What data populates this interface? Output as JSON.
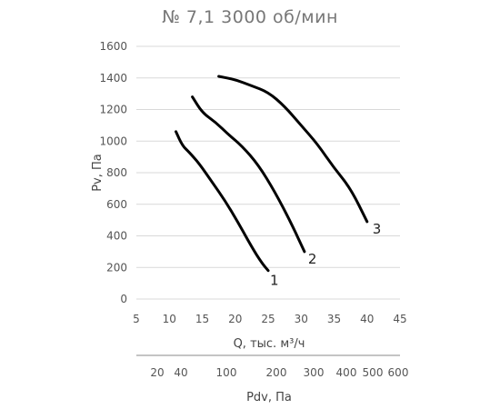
{
  "chart_data": {
    "type": "line",
    "title": "№ 7,1 3000 об/мин",
    "xlabel": "Q, тыс. м³/ч",
    "ylabel": "Pv, Па",
    "xlim": [
      5,
      45
    ],
    "ylim": [
      0,
      1600
    ],
    "x_ticks": [
      5,
      10,
      15,
      20,
      25,
      30,
      35,
      40,
      45
    ],
    "y_ticks": [
      0,
      200,
      400,
      600,
      800,
      1000,
      1200,
      1400,
      1600
    ],
    "grid": "horizontal",
    "series": [
      {
        "name": "1",
        "x": [
          11.0,
          12.0,
          13.0,
          14.5,
          16.5,
          18.5,
          20.5,
          22.5,
          24.0,
          25.0
        ],
        "y": [
          1060,
          970,
          930,
          860,
          740,
          620,
          480,
          330,
          230,
          180
        ]
      },
      {
        "name": "2",
        "x": [
          13.5,
          15.0,
          17.0,
          19.0,
          21.0,
          23.5,
          26.0,
          28.5,
          30.5
        ],
        "y": [
          1280,
          1180,
          1120,
          1040,
          970,
          850,
          680,
          480,
          300
        ]
      },
      {
        "name": "3",
        "x": [
          17.5,
          20.0,
          22.5,
          25.0,
          27.5,
          30.0,
          32.5,
          35.0,
          37.5,
          40.0
        ],
        "y": [
          1410,
          1390,
          1350,
          1310,
          1220,
          1100,
          980,
          830,
          700,
          490
        ]
      }
    ],
    "secondary_axis": {
      "label": "Pdv, Па",
      "ticks": [
        "20",
        "40",
        "100",
        "200",
        "300",
        "400",
        "500",
        "600"
      ]
    }
  }
}
